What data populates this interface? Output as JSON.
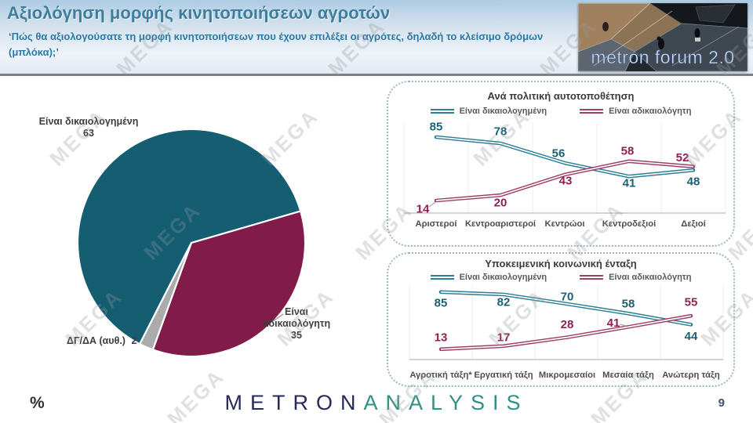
{
  "header": {
    "title": "Αξιολόγηση μορφής κινητοποιήσεων αγροτών",
    "subtitle": "‘Πώς θα αξιολογούσατε τη μορφή κινητοποιήσεων που έχουν επιλέξει οι αγρότες, δηλαδή το κλείσιμο δρόμων (μπλόκα);’",
    "logo_text": "metron forum 2.0"
  },
  "watermark_text": "MEGA",
  "chart_data": [
    {
      "type": "pie",
      "start_angle_deg": 207,
      "slices": [
        {
          "label": "Είναι δικαιολογημένη",
          "value": 63,
          "color": "#155E71"
        },
        {
          "label": "Είναι αδικαιολόγητη",
          "value": 35,
          "color": "#811B49"
        },
        {
          "label": "ΔΓ/ΔΑ (αυθ.)",
          "value": 2,
          "color": "#ABABAB"
        }
      ]
    },
    {
      "type": "line",
      "title": "Ανά πολιτική αυτοτοποθέτηση",
      "categories": [
        "Αριστεροί",
        "Κεντροαριστεροί",
        "Κεντρώοι",
        "Κεντροδεξιοί",
        "Δεξιοί"
      ],
      "series": [
        {
          "name": "Είναι δικαιολογημένη",
          "color": "#2E7E94",
          "label_color": "#1B5F76",
          "values": [
            85,
            78,
            56,
            41,
            48
          ]
        },
        {
          "name": "Είναι αδικαιολόγητη",
          "color": "#9D4169",
          "label_color": "#8C2155",
          "values": [
            14,
            20,
            43,
            58,
            52
          ]
        }
      ],
      "ylim": [
        0,
        100
      ],
      "legend_position": "top",
      "grid": "vertical-light"
    },
    {
      "type": "line",
      "title": "Υποκειμενική κοινωνική ένταξη",
      "categories": [
        "Αγροτική τάξη*",
        "Εργατική τάξη",
        "Μικρομεσαίοι",
        "Μεσαία τάξη",
        "Ανώτερη τάξη"
      ],
      "series": [
        {
          "name": "Είναι δικαιολογημένη",
          "color": "#2E7E94",
          "label_color": "#1B5F76",
          "values": [
            85,
            82,
            70,
            58,
            44
          ]
        },
        {
          "name": "Είναι αδικαιολόγητη",
          "color": "#9D4169",
          "label_color": "#8C2155",
          "values": [
            13,
            17,
            28,
            41,
            55
          ]
        }
      ],
      "ylim": [
        0,
        100
      ],
      "legend_position": "top",
      "grid": "vertical-light"
    }
  ],
  "footer": {
    "percent_symbol": "%",
    "brand_part1": "METRON",
    "brand_part2": "ANALYSIS",
    "page_number": "9"
  }
}
